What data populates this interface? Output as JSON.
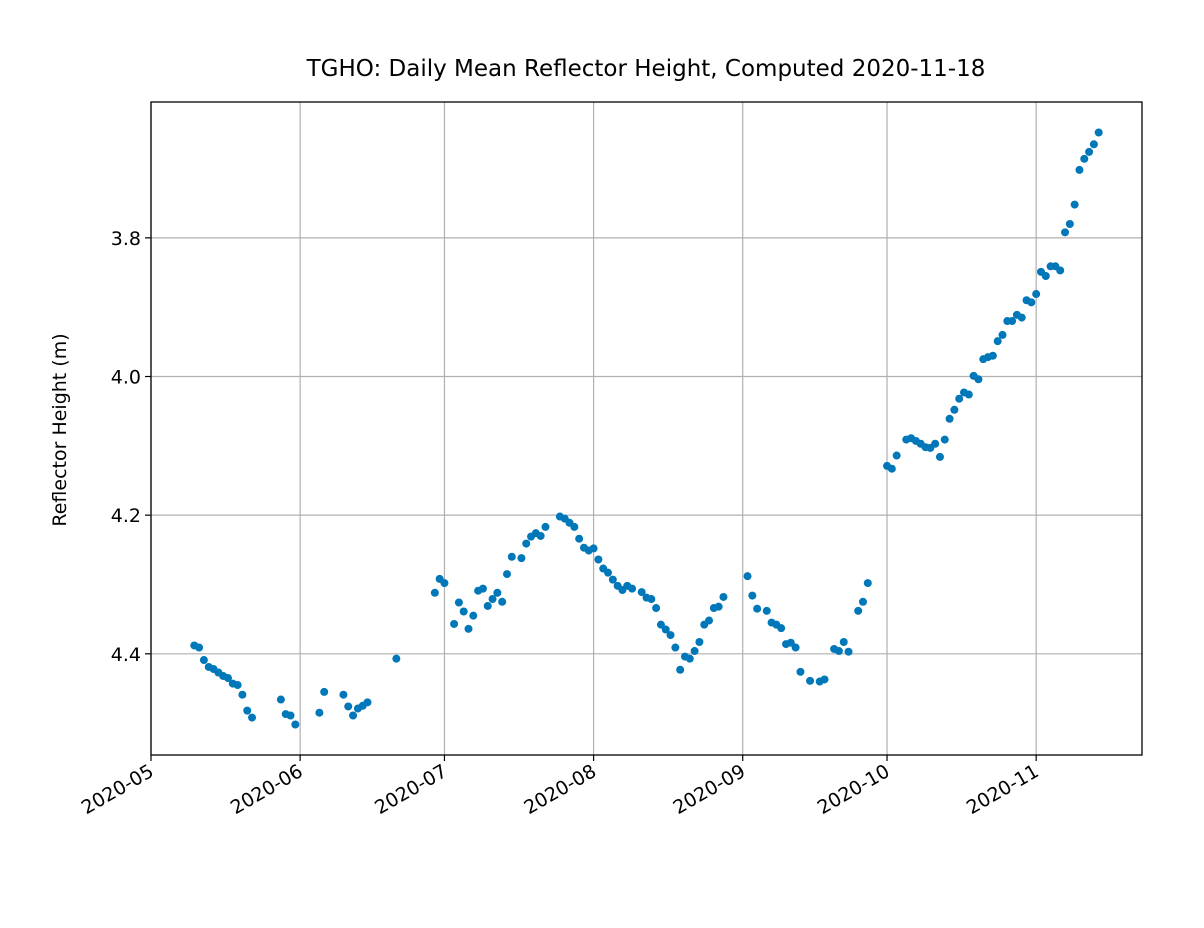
{
  "chart_data": {
    "type": "scatter",
    "title": "TGHO: Daily Mean Reflector Height, Computed 2020-11-18",
    "y_label": "Reflector Height (m)",
    "y_inverted": true,
    "grid": true,
    "xlim": [
      "2020-05-01",
      "2020-11-23"
    ],
    "xticks": [
      {
        "value": "2020-05-01",
        "label": "2020-05"
      },
      {
        "value": "2020-06-01",
        "label": "2020-06"
      },
      {
        "value": "2020-07-01",
        "label": "2020-07"
      },
      {
        "value": "2020-08-01",
        "label": "2020-08"
      },
      {
        "value": "2020-09-01",
        "label": "2020-09"
      },
      {
        "value": "2020-10-01",
        "label": "2020-10"
      },
      {
        "value": "2020-11-01",
        "label": "2020-11"
      }
    ],
    "ylim": [
      3.604,
      4.546
    ],
    "yticks": [
      3.8,
      {
        "value": 4,
        "label": "4.0"
      },
      4.2,
      4.4
    ],
    "color": "#0077b8",
    "x": [
      "2020-05-10",
      "2020-05-11",
      "2020-05-12",
      "2020-05-13",
      "2020-05-14",
      "2020-05-15",
      "2020-05-16",
      "2020-05-17",
      "2020-05-18",
      "2020-05-19",
      "2020-05-20",
      "2020-05-21",
      "2020-05-22",
      "2020-05-28",
      "2020-05-29",
      "2020-05-30",
      "2020-05-31",
      "2020-06-05",
      "2020-06-06",
      "2020-06-10",
      "2020-06-11",
      "2020-06-12",
      "2020-06-13",
      "2020-06-14",
      "2020-06-15",
      "2020-06-21",
      "2020-06-29",
      "2020-06-30",
      "2020-07-01",
      "2020-07-03",
      "2020-07-04",
      "2020-07-05",
      "2020-07-06",
      "2020-07-07",
      "2020-07-08",
      "2020-07-09",
      "2020-07-10",
      "2020-07-11",
      "2020-07-12",
      "2020-07-13",
      "2020-07-14",
      "2020-07-15",
      "2020-07-17",
      "2020-07-18",
      "2020-07-19",
      "2020-07-20",
      "2020-07-21",
      "2020-07-22",
      "2020-07-25",
      "2020-07-26",
      "2020-07-27",
      "2020-07-28",
      "2020-07-29",
      "2020-07-30",
      "2020-07-31",
      "2020-08-01",
      "2020-08-02",
      "2020-08-03",
      "2020-08-04",
      "2020-08-05",
      "2020-08-06",
      "2020-08-07",
      "2020-08-08",
      "2020-08-09",
      "2020-08-11",
      "2020-08-12",
      "2020-08-13",
      "2020-08-14",
      "2020-08-15",
      "2020-08-16",
      "2020-08-17",
      "2020-08-18",
      "2020-08-19",
      "2020-08-20",
      "2020-08-21",
      "2020-08-22",
      "2020-08-23",
      "2020-08-24",
      "2020-08-25",
      "2020-08-26",
      "2020-08-27",
      "2020-08-28",
      "2020-09-02",
      "2020-09-03",
      "2020-09-04",
      "2020-09-06",
      "2020-09-07",
      "2020-09-08",
      "2020-09-09",
      "2020-09-10",
      "2020-09-11",
      "2020-09-12",
      "2020-09-13",
      "2020-09-15",
      "2020-09-17",
      "2020-09-18",
      "2020-09-20",
      "2020-09-21",
      "2020-09-22",
      "2020-09-23",
      "2020-09-25",
      "2020-09-26",
      "2020-09-27",
      "2020-10-01",
      "2020-10-02",
      "2020-10-03",
      "2020-10-05",
      "2020-10-06",
      "2020-10-07",
      "2020-10-08",
      "2020-10-09",
      "2020-10-10",
      "2020-10-11",
      "2020-10-12",
      "2020-10-13",
      "2020-10-14",
      "2020-10-15",
      "2020-10-16",
      "2020-10-17",
      "2020-10-18",
      "2020-10-19",
      "2020-10-20",
      "2020-10-21",
      "2020-10-22",
      "2020-10-23",
      "2020-10-24",
      "2020-10-25",
      "2020-10-26",
      "2020-10-27",
      "2020-10-28",
      "2020-10-29",
      "2020-10-30",
      "2020-10-31",
      "2020-11-01",
      "2020-11-02",
      "2020-11-03",
      "2020-11-04",
      "2020-11-05",
      "2020-11-06",
      "2020-11-07",
      "2020-11-08",
      "2020-11-09",
      "2020-11-10",
      "2020-11-11",
      "2020-11-12",
      "2020-11-13",
      "2020-11-14"
    ],
    "values": [
      4.388,
      4.391,
      4.409,
      4.419,
      4.422,
      4.427,
      4.432,
      4.435,
      4.443,
      4.445,
      4.459,
      4.482,
      4.492,
      4.466,
      4.487,
      4.489,
      4.502,
      4.485,
      4.455,
      4.459,
      4.476,
      4.489,
      4.479,
      4.475,
      4.47,
      4.407,
      4.312,
      4.292,
      4.298,
      4.357,
      4.326,
      4.339,
      4.364,
      4.345,
      4.309,
      4.306,
      4.331,
      4.321,
      4.312,
      4.325,
      4.285,
      4.26,
      4.262,
      4.241,
      4.231,
      4.226,
      4.23,
      4.217,
      4.202,
      4.205,
      4.211,
      4.217,
      4.234,
      4.247,
      4.251,
      4.248,
      4.264,
      4.277,
      4.283,
      4.293,
      4.302,
      4.308,
      4.302,
      4.306,
      4.311,
      4.319,
      4.321,
      4.334,
      4.358,
      4.365,
      4.373,
      4.391,
      4.423,
      4.404,
      4.407,
      4.396,
      4.383,
      4.358,
      4.352,
      4.334,
      4.332,
      4.318,
      4.288,
      4.316,
      4.335,
      4.338,
      4.355,
      4.358,
      4.363,
      4.386,
      4.384,
      4.391,
      4.426,
      4.439,
      4.44,
      4.437,
      4.393,
      4.396,
      4.383,
      4.397,
      4.338,
      4.325,
      4.298,
      4.129,
      4.133,
      4.114,
      4.091,
      4.089,
      4.093,
      4.097,
      4.102,
      4.103,
      4.097,
      4.116,
      4.091,
      4.061,
      4.048,
      4.032,
      4.023,
      4.026,
      3.999,
      4.004,
      3.975,
      3.972,
      3.97,
      3.949,
      3.94,
      3.92,
      3.92,
      3.911,
      3.915,
      3.89,
      3.893,
      3.881,
      3.849,
      3.855,
      3.841,
      3.841,
      3.847,
      3.792,
      3.78,
      3.752,
      3.702,
      3.686,
      3.676,
      3.665,
      3.648
    ]
  }
}
